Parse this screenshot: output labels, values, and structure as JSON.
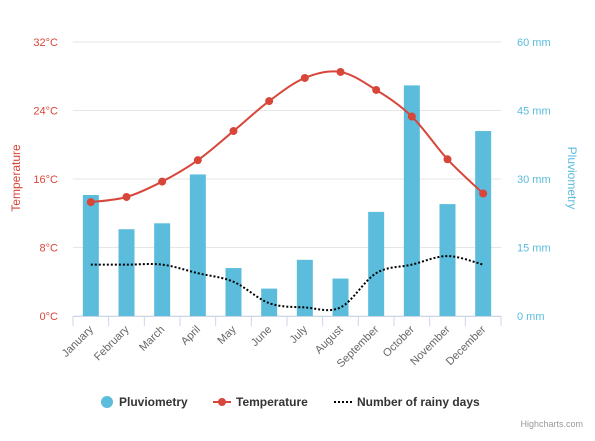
{
  "chart_data": {
    "type": "combo",
    "categories": [
      "January",
      "February",
      "March",
      "April",
      "May",
      "June",
      "July",
      "August",
      "September",
      "October",
      "November",
      "December"
    ],
    "series": [
      {
        "name": "Pluviometry",
        "type": "bar",
        "axis": "right",
        "unit": "mm",
        "color": "#5bbcdc",
        "values": [
          26.5,
          19.0,
          20.3,
          31.0,
          10.5,
          6.0,
          12.3,
          8.2,
          22.8,
          50.5,
          24.5,
          40.5
        ]
      },
      {
        "name": "Temperature",
        "type": "line",
        "axis": "left",
        "unit": "°C",
        "color": "#d8463a",
        "values": [
          13.3,
          13.9,
          15.7,
          18.2,
          21.6,
          25.1,
          27.8,
          28.5,
          26.4,
          23.3,
          18.3,
          14.3
        ]
      },
      {
        "name": "Number of rainy days",
        "type": "line",
        "style": "dotted",
        "axis": "left",
        "color": "#000000",
        "values": [
          6.0,
          6.0,
          6.0,
          5.0,
          4.0,
          1.5,
          1.0,
          1.0,
          5.0,
          6.0,
          7.0,
          6.0
        ]
      }
    ],
    "y_left": {
      "label": "Temperature",
      "ticks": [
        "0°C",
        "8°C",
        "16°C",
        "24°C",
        "32°C"
      ],
      "range": [
        0,
        32
      ],
      "color": "#d8463a"
    },
    "y_right": {
      "label": "Pluviometry",
      "ticks": [
        "0 mm",
        "15 mm",
        "30 mm",
        "45 mm",
        "60 mm"
      ],
      "range": [
        0,
        60
      ],
      "color": "#5bbcdc"
    },
    "legend": {
      "position": "bottom"
    },
    "grid": true,
    "credits": "Highcharts.com"
  }
}
